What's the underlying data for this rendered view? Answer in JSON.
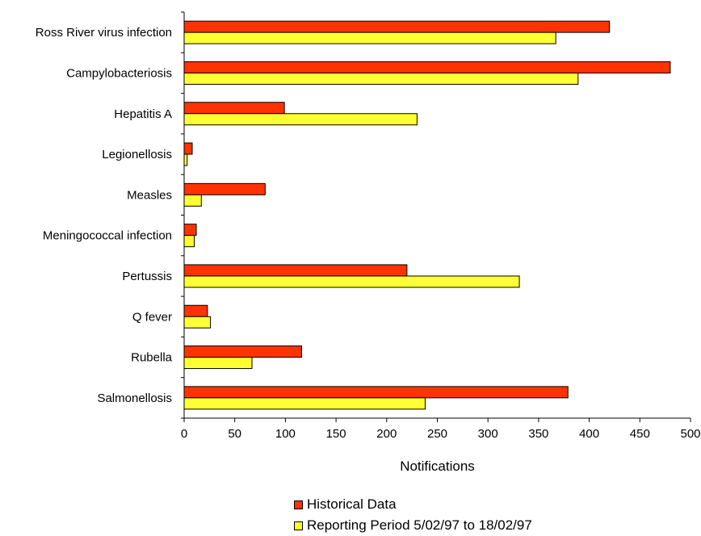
{
  "chart_data": {
    "type": "bar",
    "orientation": "horizontal",
    "categories": [
      "Ross River virus infection",
      "Campylobacteriosis",
      "Hepatitis A",
      "Legionellosis",
      "Measles",
      "Meningococcal infection",
      "Pertussis",
      "Q fever",
      "Rubella",
      "Salmonellosis"
    ],
    "series": [
      {
        "name": "Historical Data",
        "color": "#ff3300",
        "values": [
          420,
          480,
          99,
          8,
          80,
          12,
          220,
          23,
          116,
          379
        ]
      },
      {
        "name": "Reporting Period 5/02/97 to 18/02/97",
        "color": "#ffff33",
        "values": [
          367,
          389,
          230,
          3,
          17,
          10,
          331,
          26,
          67,
          238
        ]
      }
    ],
    "xlabel": "Notifications",
    "xlim": [
      0,
      500
    ],
    "xticks": [
      "0",
      "50",
      "100",
      "150",
      "200",
      "250",
      "300",
      "350",
      "400",
      "450",
      "500"
    ],
    "legend_position": "bottom",
    "grid": false
  }
}
